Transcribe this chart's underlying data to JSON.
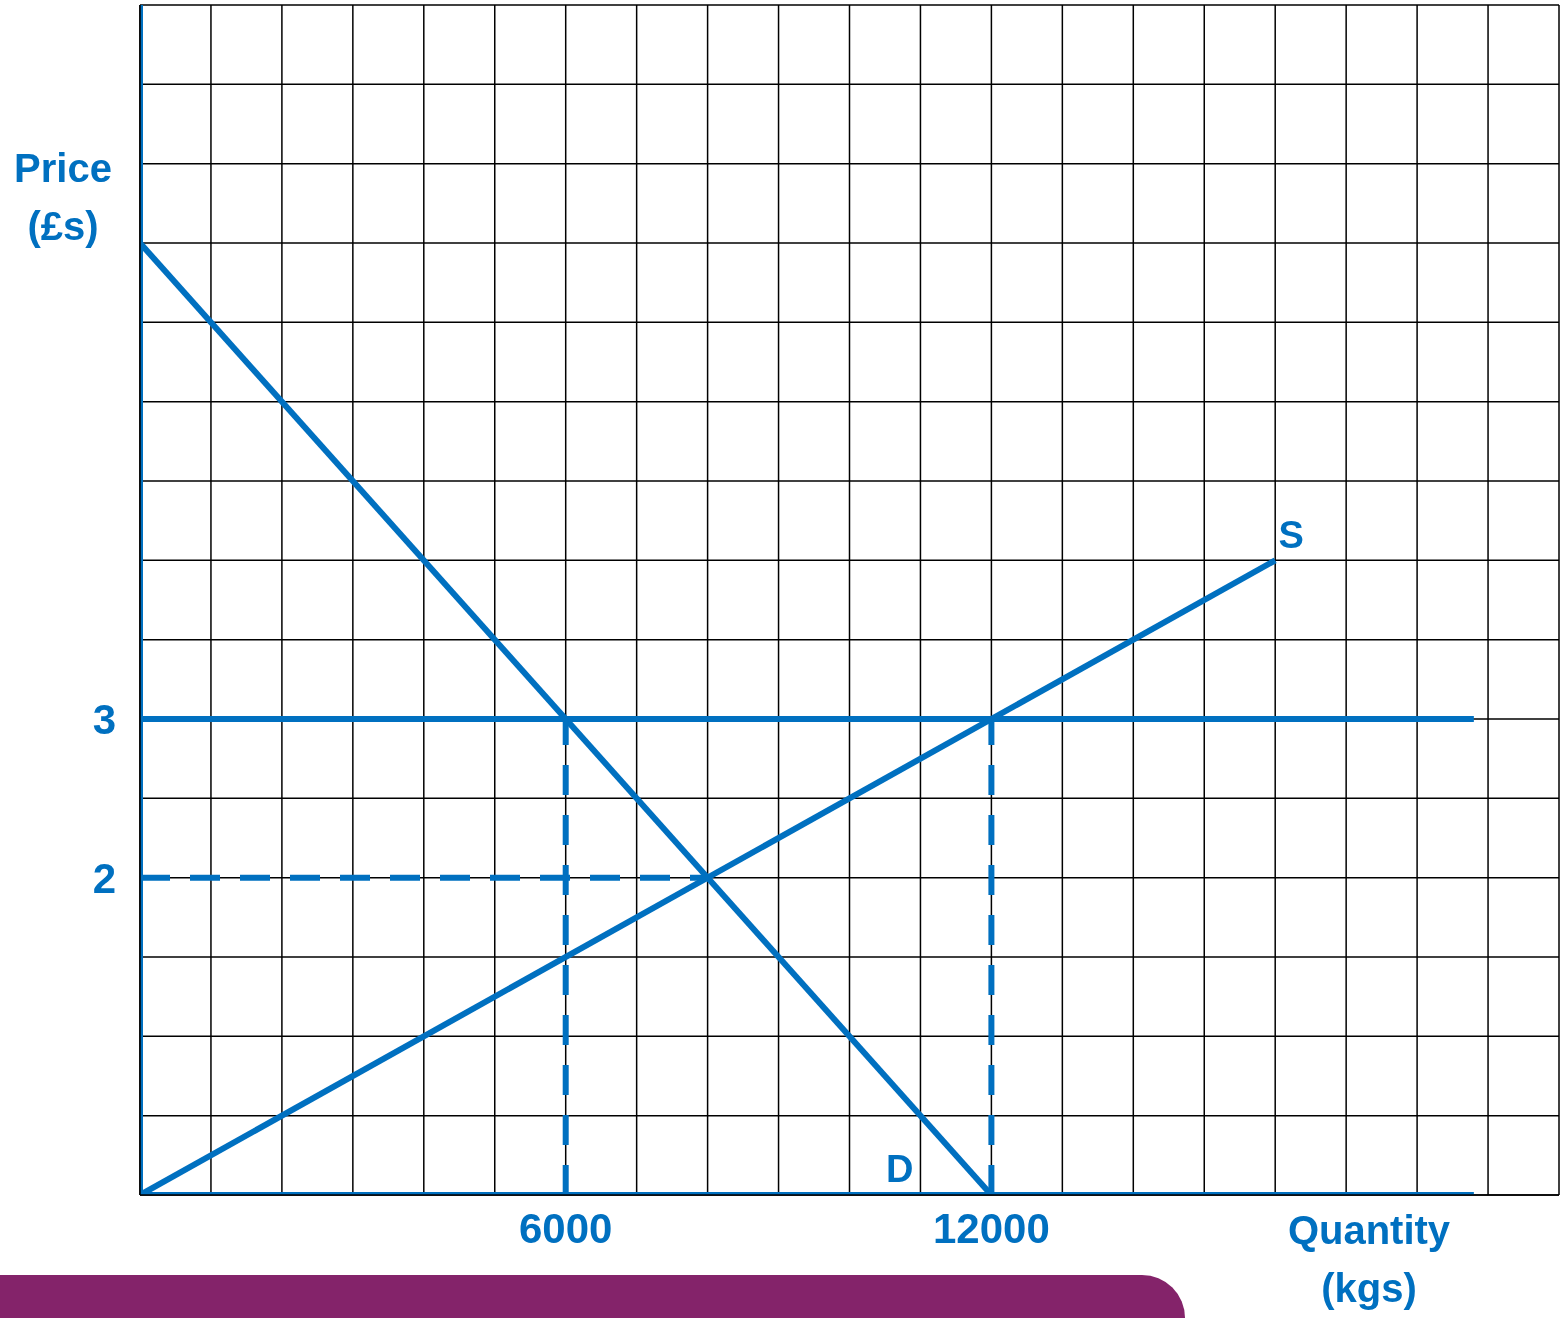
{
  "chart_data": {
    "type": "line",
    "xlabel": "Quantity (kgs)",
    "ylabel": "Price (£s)",
    "xlim": [
      0,
      20000
    ],
    "ylim": [
      0,
      7.5
    ],
    "xticks": [
      {
        "value": 0,
        "label": null
      },
      {
        "value": 1000,
        "label": null
      },
      {
        "value": 2000,
        "label": null
      },
      {
        "value": 3000,
        "label": null
      },
      {
        "value": 4000,
        "label": null
      },
      {
        "value": 5000,
        "label": null
      },
      6000,
      {
        "value": 7000,
        "label": null
      },
      {
        "value": 8000,
        "label": null
      },
      {
        "value": 9000,
        "label": null
      },
      {
        "value": 10000,
        "label": null
      },
      {
        "value": 11000,
        "label": null
      },
      12000,
      {
        "value": 13000,
        "label": null
      },
      {
        "value": 14000,
        "label": null
      },
      {
        "value": 15000,
        "label": null
      },
      {
        "value": 16000,
        "label": null
      },
      {
        "value": 17000,
        "label": null
      },
      {
        "value": 18000,
        "label": null
      },
      {
        "value": 19000,
        "label": null
      },
      {
        "value": 20000,
        "label": null
      }
    ],
    "yticks": [
      {
        "value": 0,
        "label": null
      },
      {
        "value": 0.5,
        "label": null
      },
      {
        "value": 1,
        "label": null
      },
      {
        "value": 1.5,
        "label": null
      },
      2,
      {
        "value": 2.5,
        "label": null
      },
      3,
      {
        "value": 3.5,
        "label": null
      },
      {
        "value": 4,
        "label": null
      },
      {
        "value": 4.5,
        "label": null
      },
      {
        "value": 5,
        "label": null
      },
      {
        "value": 5.5,
        "label": null
      },
      {
        "value": 6,
        "label": null
      },
      {
        "value": 6.5,
        "label": null
      },
      {
        "value": 7,
        "label": null
      },
      {
        "value": 7.5,
        "label": null
      }
    ],
    "grid": true,
    "marker": "none",
    "line_style": "solid",
    "series": [
      {
        "name": "D",
        "color": "#0070c0",
        "x": [
          0,
          12000
        ],
        "values": [
          6,
          0
        ]
      },
      {
        "name": "S",
        "color": "#0070c0",
        "x": [
          0,
          16000
        ],
        "values": [
          0,
          4
        ]
      },
      {
        "color": "#0070c0",
        "x": [
          0,
          18800
        ],
        "values": [
          3,
          3
        ]
      },
      {
        "color": "#0070c0",
        "x": [
          0,
          18800
        ],
        "values": [
          0,
          0
        ]
      },
      {
        "color": "#0070c0",
        "x": [
          0,
          0
        ],
        "values": [
          0,
          7.5
        ]
      },
      {
        "color": "#0070c0",
        "x": [
          0,
          8000
        ],
        "values": [
          2,
          2
        ],
        "line_style": "dashed"
      },
      {
        "color": "#0070c0",
        "x": [
          6000,
          6000
        ],
        "values": [
          0,
          3
        ],
        "line_style": "dashed"
      },
      {
        "color": "#0070c0",
        "x": [
          12000,
          12000
        ],
        "values": [
          0,
          3
        ],
        "line_style": "dashed"
      }
    ]
  }
}
